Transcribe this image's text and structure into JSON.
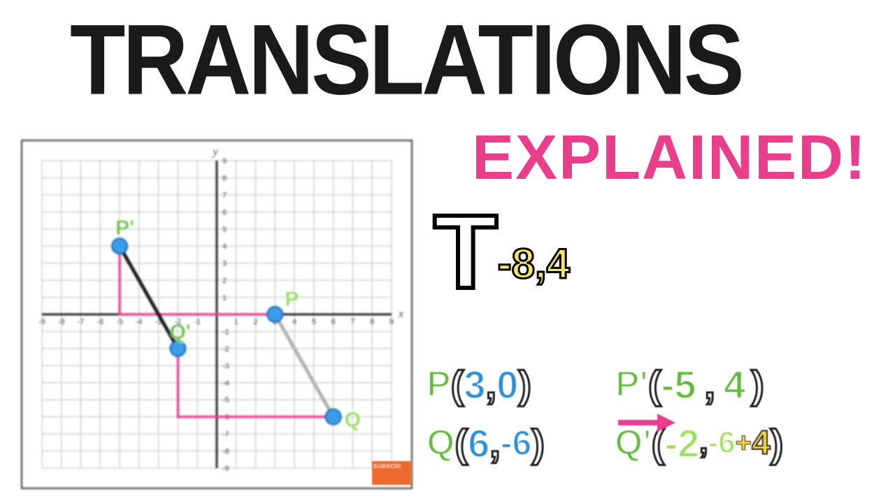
{
  "title": {
    "main": "TRANSLATIONS",
    "sub": "EXPLAINED!",
    "sub_color": "#e83e8c"
  },
  "graph": {
    "bg": "#ffffff",
    "grid_color": "#b8b8b8",
    "axis_color": "#222222",
    "label_color": "#444444",
    "xmin": -9,
    "xmax": 9,
    "ymin": -9,
    "ymax": 9,
    "x_label": "x",
    "y_label": "y",
    "points": {
      "P": {
        "x": 3,
        "y": 0,
        "color": "#3b9de8",
        "label_color": "#8cd94a"
      },
      "Q": {
        "x": 6,
        "y": -6,
        "color": "#3b9de8",
        "label_color": "#8cd94a"
      },
      "Pprime": {
        "x": -5,
        "y": 4,
        "color": "#3b9de8",
        "label_color": "#62b83a"
      },
      "Qprime": {
        "x": -2,
        "y": -2,
        "color": "#3b9de8",
        "label_color": "#62b83a"
      }
    },
    "segments": [
      {
        "from": "P",
        "to": "Q",
        "color": "#b0b0b0",
        "width": 5
      },
      {
        "from": "Pprime",
        "to": "Qprime",
        "color": "#1a1a1a",
        "width": 5
      }
    ],
    "paths_pink": [
      [
        [
          -5,
          4
        ],
        [
          -5,
          0
        ],
        [
          3,
          0
        ]
      ],
      [
        [
          -2,
          -2
        ],
        [
          -2,
          -6
        ],
        [
          6,
          -6
        ]
      ]
    ],
    "pink_color": "#e83e8c"
  },
  "t_notation": {
    "letter": "T",
    "dx": "-8",
    "dy": "4",
    "sub_color": "#f5e663"
  },
  "coords": {
    "green": "#62b83a",
    "lightgreen": "#9ce05a",
    "blue": "#2a8ed6",
    "yellow": "#f5d936",
    "pink": "#e83e8c",
    "P": {
      "label": "P",
      "x": "3",
      "y": "0"
    },
    "Q": {
      "label": "Q",
      "x": "6",
      "y": "-6"
    },
    "Pp": {
      "label": "P'",
      "x": "-5",
      "y": "4"
    },
    "Qp": {
      "label": "Q'",
      "x": "-2",
      "expr_a": "-6",
      "expr_op": "+",
      "expr_b": "4"
    }
  },
  "badge": "SUBSCRI"
}
